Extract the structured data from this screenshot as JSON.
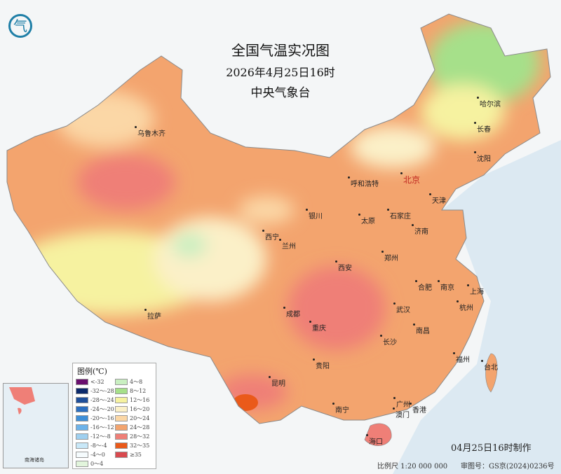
{
  "header": {
    "title": "全国气温实况图",
    "datetime": "2026年4月25日16时",
    "agency": "中央气象台"
  },
  "logo": {
    "icon": "cma-logo-icon",
    "glyph": "气"
  },
  "cities": [
    {
      "name": "乌鲁木齐",
      "capital": false
    },
    {
      "name": "哈尔滨",
      "capital": false
    },
    {
      "name": "长春",
      "capital": false
    },
    {
      "name": "沈阳",
      "capital": false
    },
    {
      "name": "北京",
      "capital": true
    },
    {
      "name": "呼和浩特",
      "capital": false
    },
    {
      "name": "天津",
      "capital": false
    },
    {
      "name": "石家庄",
      "capital": false
    },
    {
      "name": "银川",
      "capital": false
    },
    {
      "name": "太原",
      "capital": false
    },
    {
      "name": "济南",
      "capital": false
    },
    {
      "name": "西宁",
      "capital": false
    },
    {
      "name": "兰州",
      "capital": false
    },
    {
      "name": "郑州",
      "capital": false
    },
    {
      "name": "西安",
      "capital": false
    },
    {
      "name": "合肥",
      "capital": false
    },
    {
      "name": "南京",
      "capital": false
    },
    {
      "name": "上海",
      "capital": false
    },
    {
      "name": "成都",
      "capital": false
    },
    {
      "name": "武汉",
      "capital": false
    },
    {
      "name": "杭州",
      "capital": false
    },
    {
      "name": "拉萨",
      "capital": false
    },
    {
      "name": "重庆",
      "capital": false
    },
    {
      "name": "南昌",
      "capital": false
    },
    {
      "name": "长沙",
      "capital": false
    },
    {
      "name": "福州",
      "capital": false
    },
    {
      "name": "台北",
      "capital": false
    },
    {
      "name": "贵阳",
      "capital": false
    },
    {
      "name": "昆明",
      "capital": false
    },
    {
      "name": "南宁",
      "capital": false
    },
    {
      "name": "广州",
      "capital": false
    },
    {
      "name": "香港",
      "capital": false
    },
    {
      "name": "澳门",
      "capital": false
    },
    {
      "name": "海口",
      "capital": false
    }
  ],
  "legend": {
    "title": "图例(℃)",
    "left": [
      {
        "label": "<-32",
        "color": "#6a0f6e"
      },
      {
        "label": "-32～-28",
        "color": "#0c2a6b"
      },
      {
        "label": "-28～-24",
        "color": "#1f4f9a"
      },
      {
        "label": "-24～-20",
        "color": "#2c6fc0"
      },
      {
        "label": "-20～-16",
        "color": "#3e8fd8"
      },
      {
        "label": "-16～-12",
        "color": "#6db3ea"
      },
      {
        "label": "-12～-8",
        "color": "#9fd0f0"
      },
      {
        "label": "-8～-4",
        "color": "#c9e8f8"
      },
      {
        "label": "-4～0",
        "color": "#f5fbfd"
      },
      {
        "label": "0～4",
        "color": "#e2f5dc"
      }
    ],
    "right": [
      {
        "label": "4～8",
        "color": "#c9efc1"
      },
      {
        "label": "8～12",
        "color": "#a6e08a"
      },
      {
        "label": "12～16",
        "color": "#f6f2a0"
      },
      {
        "label": "16～20",
        "color": "#fbf0c8"
      },
      {
        "label": "20～24",
        "color": "#fbd7a6"
      },
      {
        "label": "24～28",
        "color": "#f3a46e"
      },
      {
        "label": "28～32",
        "color": "#ef7f77"
      },
      {
        "label": "32～35",
        "color": "#ea5a1a"
      },
      {
        "label": "≥35",
        "color": "#d94a4f"
      }
    ]
  },
  "footer": {
    "made": "04月25日16时制作",
    "scale": "比例尺 1:20 000 000",
    "approval": "审图号：GS京(2024)0236号"
  },
  "inset": {
    "label": "南海诸岛"
  }
}
